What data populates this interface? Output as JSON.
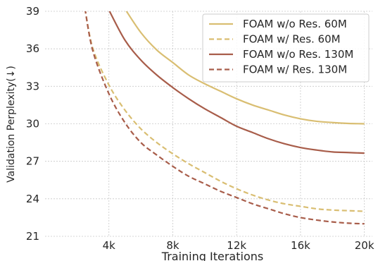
{
  "chart_data": {
    "type": "line",
    "xlabel": "Training Iterations",
    "ylabel": "Validation Perplexity(↓)",
    "xlim": [
      0,
      20500
    ],
    "ylim": [
      21,
      39
    ],
    "xticks": [
      4000,
      8000,
      12000,
      16000,
      20000
    ],
    "xtick_labels": [
      "4k",
      "8k",
      "12k",
      "16k",
      "20k"
    ],
    "yticks": [
      21,
      24,
      27,
      30,
      33,
      36,
      39
    ],
    "ytick_labels": [
      "21",
      "24",
      "27",
      "30",
      "33",
      "36",
      "39"
    ],
    "grid": true,
    "legend_position": "top-right",
    "series": [
      {
        "name": "FOAM w/o Res. 60M",
        "color": "#d9be72",
        "dash": "solid",
        "x": [
          5000,
          6000,
          7000,
          8000,
          9000,
          10000,
          11000,
          12000,
          13000,
          14000,
          15000,
          16000,
          17000,
          18000,
          19000,
          20000
        ],
        "y": [
          39.2,
          37.3,
          35.9,
          34.9,
          33.9,
          33.2,
          32.6,
          32.0,
          31.5,
          31.1,
          30.7,
          30.4,
          30.2,
          30.1,
          30.03,
          30.0
        ]
      },
      {
        "name": "FOAM w/ Res. 60M",
        "color": "#d9be72",
        "dash": "dashed",
        "x": [
          2500,
          3000,
          4000,
          5000,
          6000,
          7000,
          8000,
          9000,
          10000,
          11000,
          12000,
          13000,
          14000,
          15000,
          16000,
          17000,
          18000,
          19000,
          20000
        ],
        "y": [
          39.2,
          36.0,
          33.1,
          31.1,
          29.6,
          28.5,
          27.6,
          26.8,
          26.1,
          25.4,
          24.8,
          24.3,
          23.9,
          23.6,
          23.4,
          23.2,
          23.1,
          23.05,
          23.0
        ]
      },
      {
        "name": "FOAM w/o Res. 130M",
        "color": "#a85d4a",
        "dash": "solid",
        "x": [
          4000,
          5000,
          6000,
          7000,
          8000,
          9000,
          10000,
          11000,
          12000,
          13000,
          14000,
          15000,
          16000,
          17000,
          18000,
          19000,
          20000
        ],
        "y": [
          39.1,
          36.7,
          35.1,
          33.9,
          32.9,
          32.0,
          31.2,
          30.5,
          29.8,
          29.3,
          28.8,
          28.4,
          28.1,
          27.9,
          27.75,
          27.7,
          27.65
        ]
      },
      {
        "name": "FOAM w/ Res. 130M",
        "color": "#a85d4a",
        "dash": "dashed",
        "x": [
          2500,
          3000,
          4000,
          5000,
          6000,
          7000,
          8000,
          9000,
          10000,
          11000,
          12000,
          13000,
          14000,
          15000,
          16000,
          17000,
          18000,
          19000,
          20000
        ],
        "y": [
          39.2,
          35.8,
          32.4,
          30.1,
          28.5,
          27.5,
          26.6,
          25.8,
          25.2,
          24.6,
          24.1,
          23.6,
          23.2,
          22.8,
          22.5,
          22.3,
          22.15,
          22.05,
          22.0
        ]
      }
    ]
  }
}
